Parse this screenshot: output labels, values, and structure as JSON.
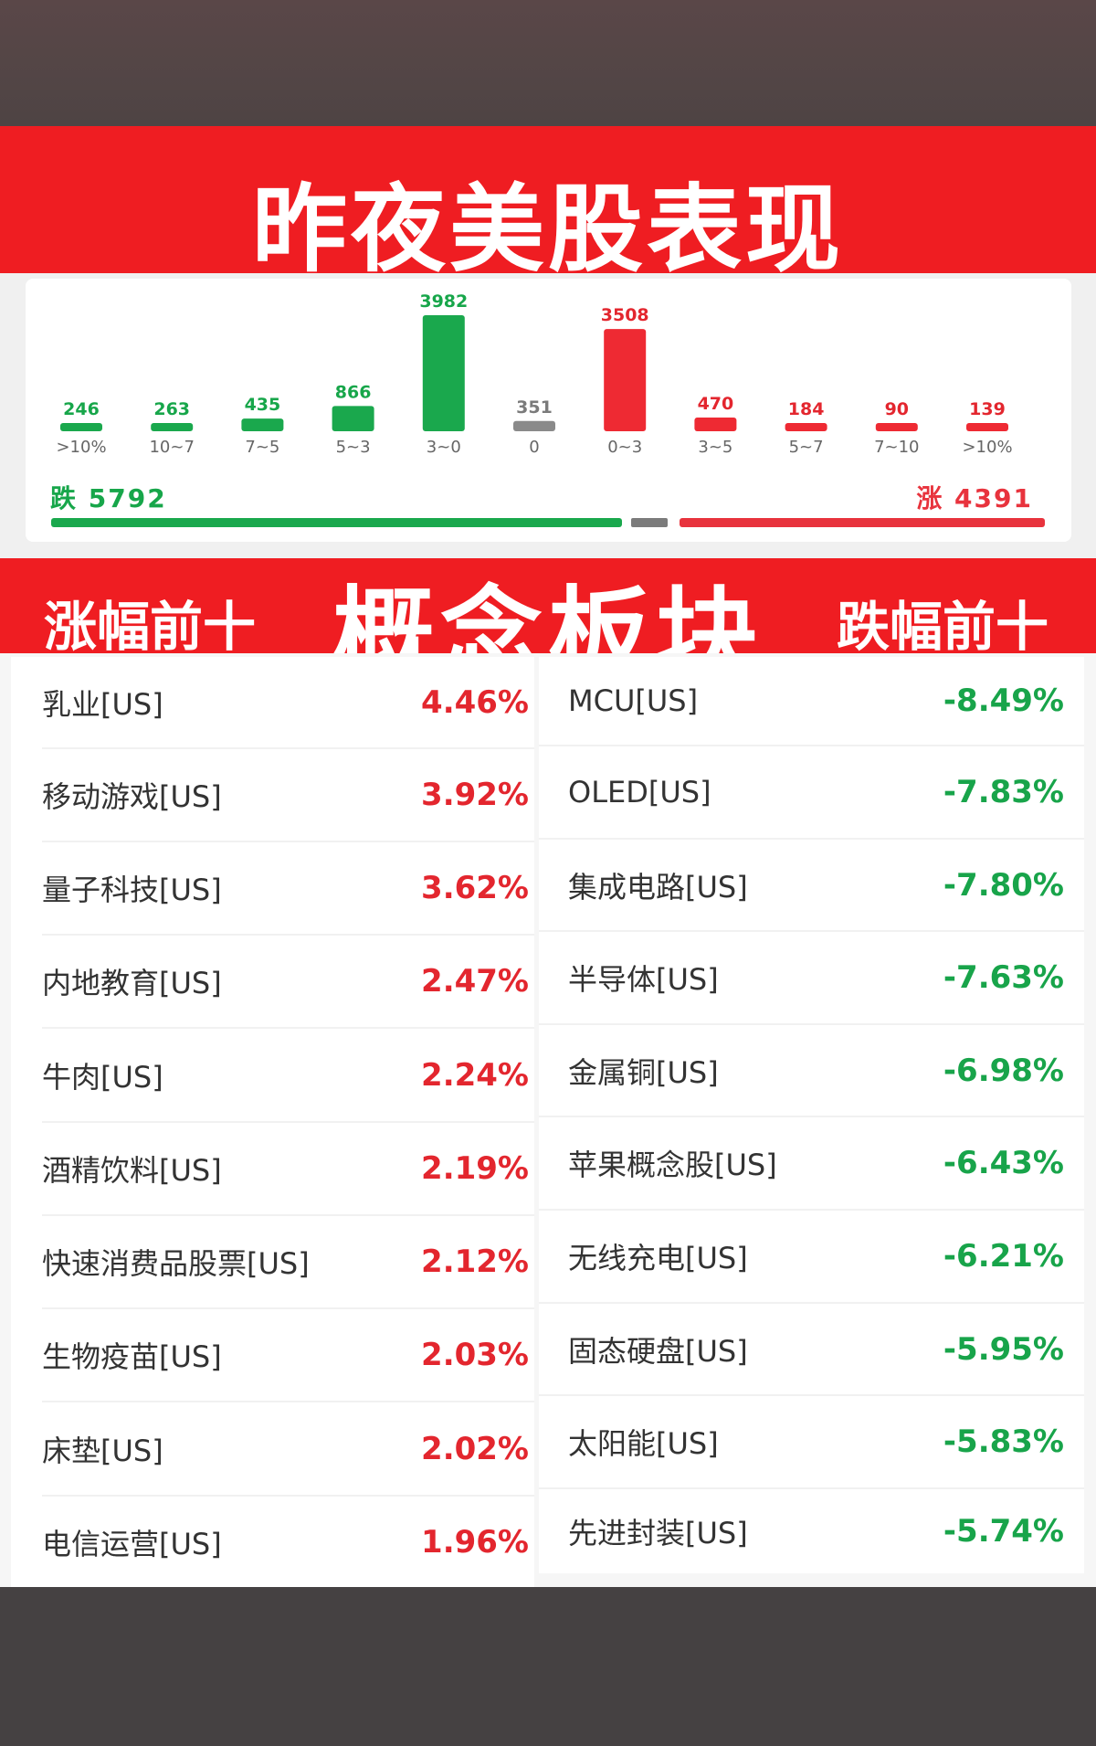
{
  "header": {
    "title": "昨夜美股表现"
  },
  "colors": {
    "red": "#ef1d22",
    "rise": "#e8333d",
    "fall": "#17a64a",
    "flat": "#7b7b7b"
  },
  "chart_data": {
    "type": "bar",
    "categories": [
      ">10%",
      "10~7",
      "7~5",
      "5~3",
      "3~0",
      "0",
      "0~3",
      "3~5",
      "5~7",
      "7~10",
      ">10%"
    ],
    "values": [
      246,
      263,
      435,
      866,
      3982,
      351,
      3508,
      470,
      184,
      90,
      139
    ],
    "colors": [
      "#1aa84d",
      "#1aa84d",
      "#1aa84d",
      "#1aa84d",
      "#1aa84d",
      "#8a8a8a",
      "#ee2a33",
      "#ee2a33",
      "#ee2a33",
      "#ee2a33",
      "#ee2a33"
    ],
    "label_colors": [
      "#17a64a",
      "#17a64a",
      "#17a64a",
      "#17a64a",
      "#17a64a",
      "#7b7b7b",
      "#e3262e",
      "#e3262e",
      "#e3262e",
      "#e3262e",
      "#e3262e"
    ],
    "title": "",
    "xlabel": "",
    "ylabel": "",
    "ylim": [
      0,
      3982
    ],
    "grid": false
  },
  "summary": {
    "fall_label": "跌 5792",
    "rise_label": "涨 4391"
  },
  "band": {
    "left": "涨幅前十",
    "center": "概念板块",
    "right": "跌幅前十"
  },
  "gainers": [
    {
      "name": "乳业[US]",
      "pct": "4.46%"
    },
    {
      "name": "移动游戏[US]",
      "pct": "3.92%"
    },
    {
      "name": "量子科技[US]",
      "pct": "3.62%"
    },
    {
      "name": "内地教育[US]",
      "pct": "2.47%"
    },
    {
      "name": "牛肉[US]",
      "pct": "2.24%"
    },
    {
      "name": "酒精饮料[US]",
      "pct": "2.19%"
    },
    {
      "name": "快速消费品股票[US]",
      "pct": "2.12%"
    },
    {
      "name": "生物疫苗[US]",
      "pct": "2.03%"
    },
    {
      "name": "床垫[US]",
      "pct": "2.02%"
    },
    {
      "name": "电信运营[US]",
      "pct": "1.96%"
    }
  ],
  "losers": [
    {
      "name": "MCU[US]",
      "pct": "-8.49%"
    },
    {
      "name": "OLED[US]",
      "pct": "-7.83%"
    },
    {
      "name": "集成电路[US]",
      "pct": "-7.80%"
    },
    {
      "name": "半导体[US]",
      "pct": "-7.63%"
    },
    {
      "name": "金属铜[US]",
      "pct": "-6.98%"
    },
    {
      "name": "苹果概念股[US]",
      "pct": "-6.43%"
    },
    {
      "name": "无线充电[US]",
      "pct": "-6.21%"
    },
    {
      "name": "固态硬盘[US]",
      "pct": "-5.95%"
    },
    {
      "name": "太阳能[US]",
      "pct": "-5.83%"
    },
    {
      "name": "先进封装[US]",
      "pct": "-5.74%"
    }
  ]
}
